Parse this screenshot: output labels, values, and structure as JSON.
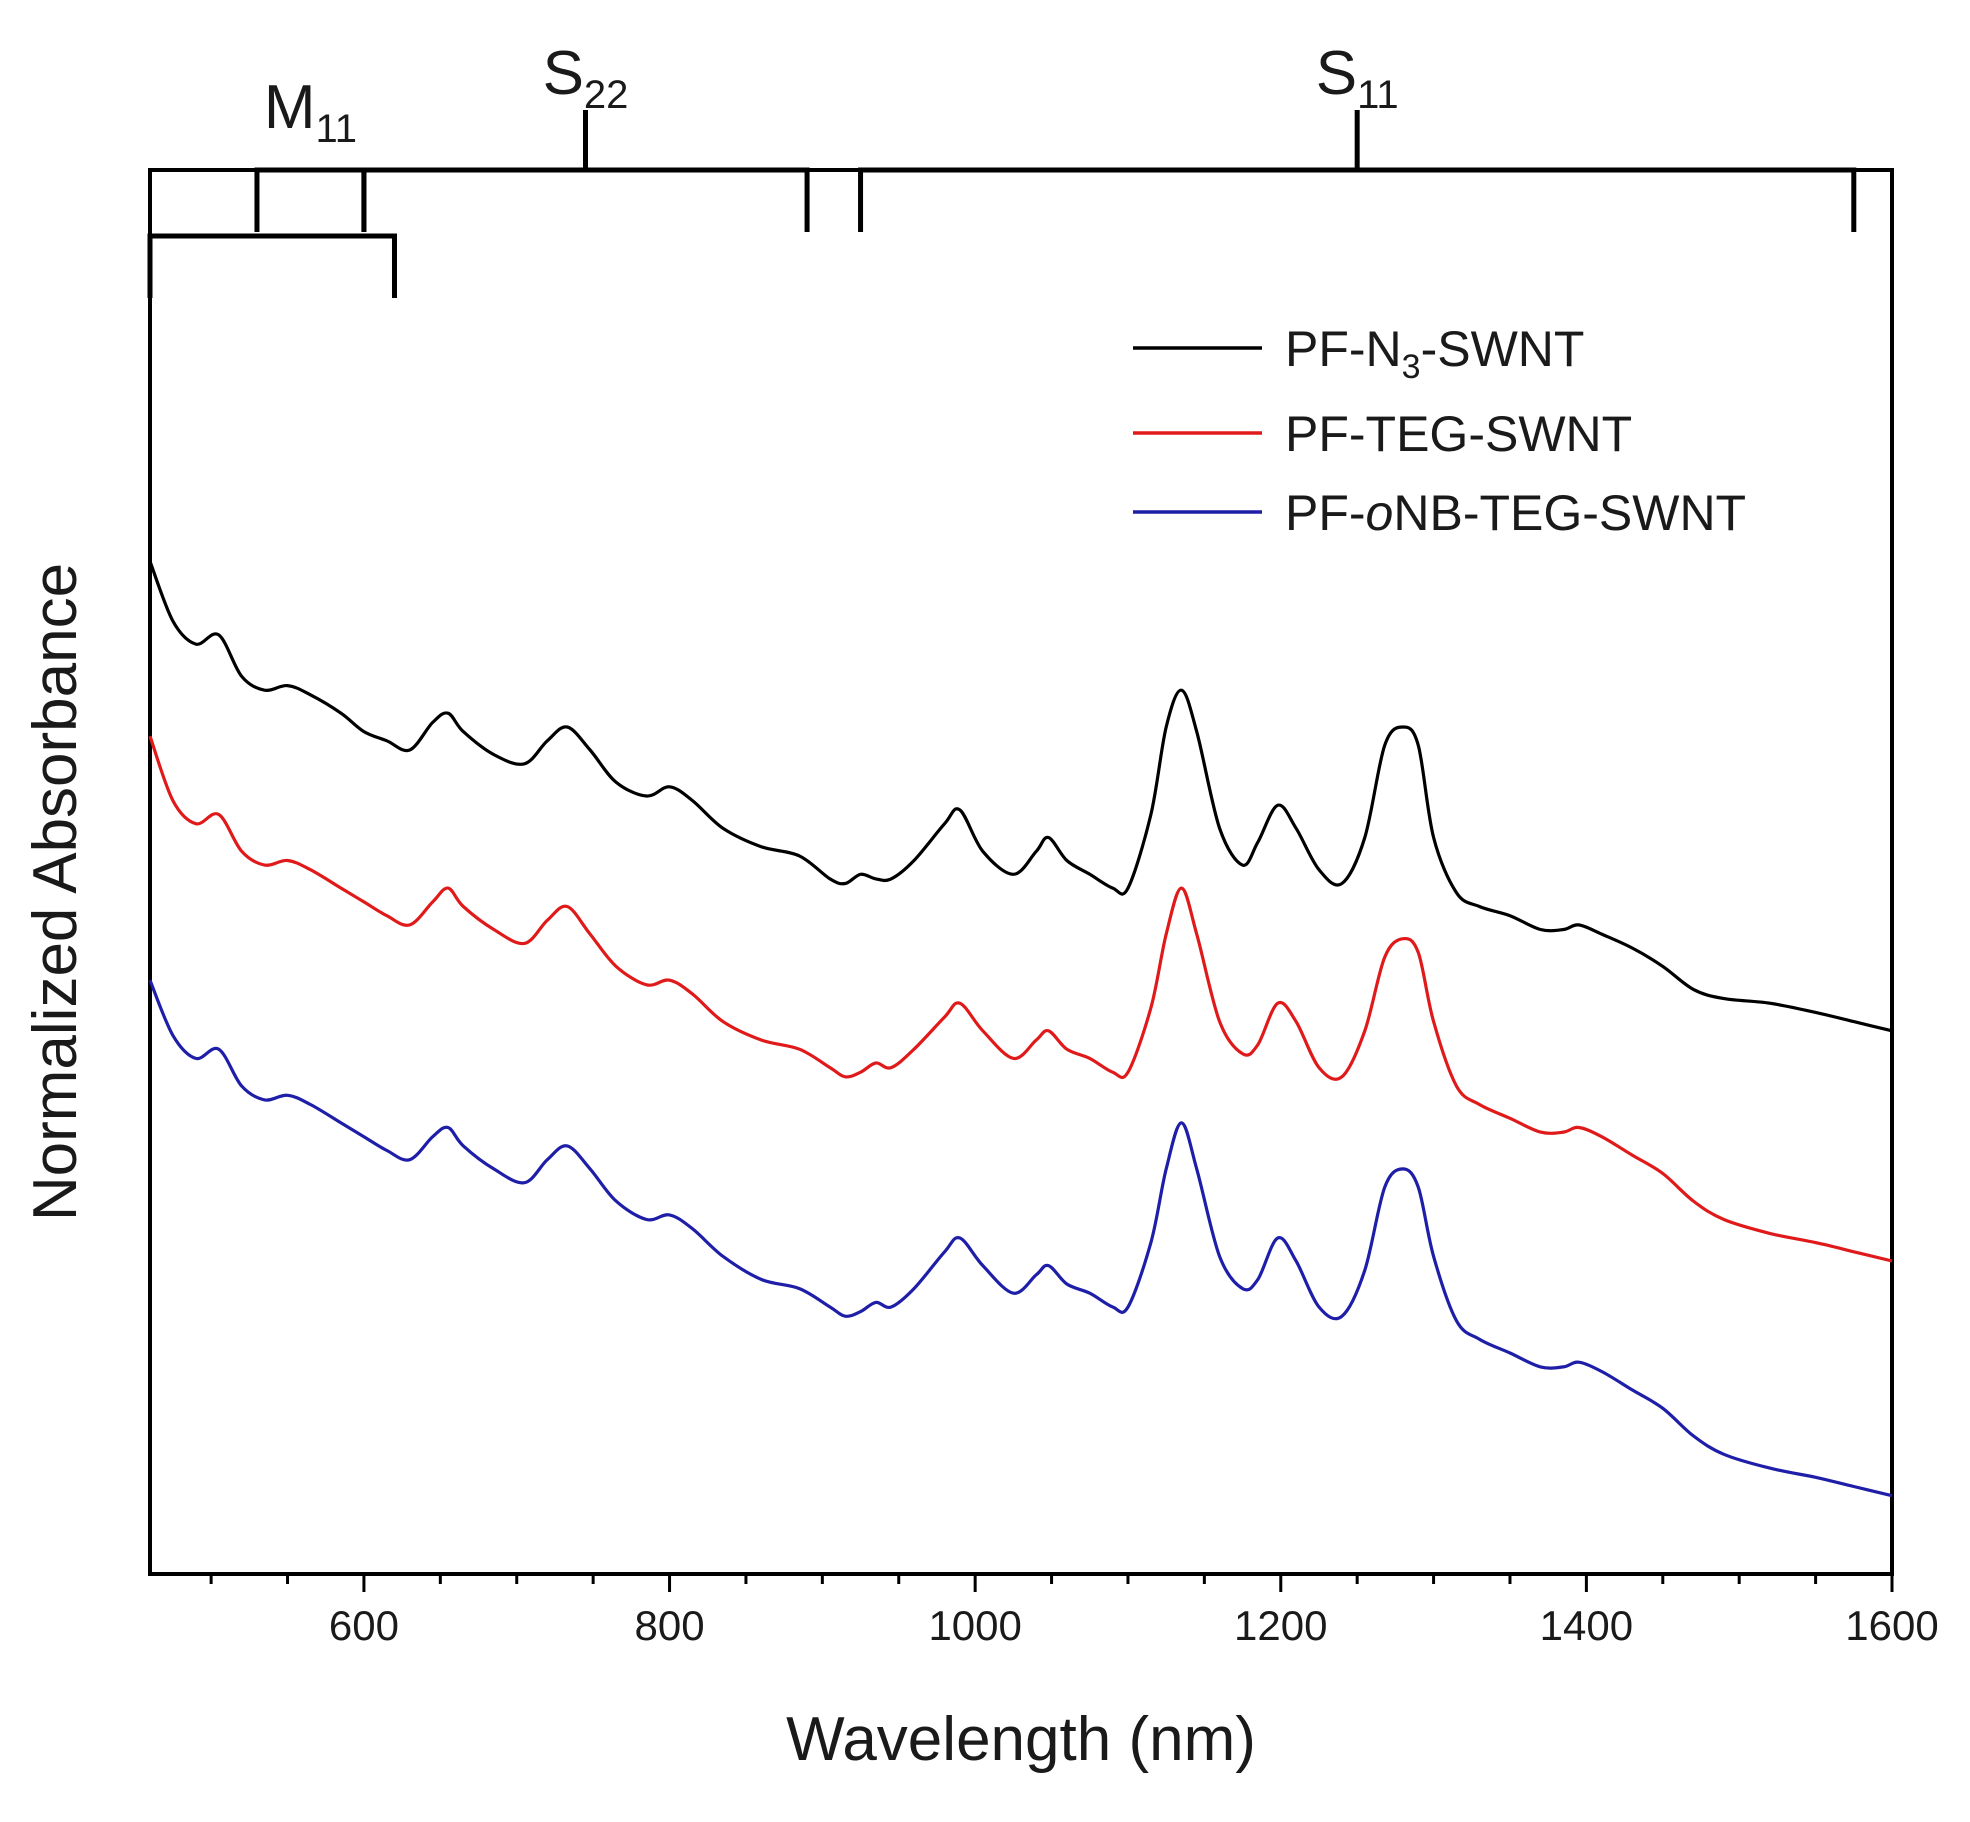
{
  "chart_data": {
    "type": "line",
    "xlabel": "Wavelength (nm)",
    "ylabel": "Normalized Absorbance",
    "xlim": [
      460,
      1600
    ],
    "ylim": [
      -1.2,
      1.85
    ],
    "x_ticks": [
      600,
      800,
      1000,
      1200,
      1400,
      1600
    ],
    "y_ticks": [],
    "grid": false,
    "legend_position": "top-right",
    "bands": [
      {
        "name": "M",
        "sub": "11",
        "brackets": [
          {
            "start": 530,
            "end": 600,
            "level": "upper"
          },
          {
            "start": 460,
            "end": 620,
            "level": "lower"
          }
        ]
      },
      {
        "name": "S",
        "sub": "22",
        "brackets": [
          {
            "start": 600,
            "end": 890,
            "level": "upper"
          }
        ]
      },
      {
        "name": "S",
        "sub": "11",
        "brackets": [
          {
            "start": 925,
            "end": 1575,
            "level": "upper"
          }
        ]
      }
    ],
    "series": [
      {
        "name_parts": [
          "PF-N",
          "3",
          "-SWNT"
        ],
        "color": "#000000",
        "x": [
          460,
          475,
          490,
          505,
          520,
          535,
          550,
          565,
          585,
          600,
          615,
          630,
          645,
          655,
          665,
          685,
          705,
          720,
          733,
          748,
          765,
          785,
          800,
          815,
          835,
          860,
          885,
          905,
          915,
          925,
          935,
          945,
          960,
          980,
          990,
          1005,
          1025,
          1040,
          1048,
          1060,
          1075,
          1090,
          1100,
          1115,
          1125,
          1135,
          1145,
          1160,
          1175,
          1185,
          1198,
          1210,
          1225,
          1240,
          1255,
          1268,
          1280,
          1290,
          1300,
          1315,
          1330,
          1350,
          1370,
          1385,
          1395,
          1410,
          1430,
          1450,
          1470,
          1490,
          1520,
          1550,
          1575,
          1600
        ],
        "y": [
          1.0,
          0.87,
          0.82,
          0.84,
          0.75,
          0.72,
          0.73,
          0.71,
          0.67,
          0.63,
          0.61,
          0.59,
          0.65,
          0.67,
          0.63,
          0.58,
          0.56,
          0.61,
          0.64,
          0.59,
          0.52,
          0.49,
          0.51,
          0.48,
          0.42,
          0.38,
          0.36,
          0.31,
          0.3,
          0.32,
          0.31,
          0.31,
          0.35,
          0.43,
          0.46,
          0.37,
          0.32,
          0.37,
          0.4,
          0.35,
          0.32,
          0.29,
          0.29,
          0.45,
          0.64,
          0.72,
          0.63,
          0.42,
          0.34,
          0.39,
          0.47,
          0.42,
          0.33,
          0.3,
          0.4,
          0.6,
          0.64,
          0.6,
          0.4,
          0.28,
          0.25,
          0.23,
          0.2,
          0.2,
          0.21,
          0.19,
          0.16,
          0.12,
          0.07,
          0.05,
          0.04,
          0.02,
          0.0,
          -0.02
        ]
      },
      {
        "name_parts": [
          "PF-TEG-SWNT"
        ],
        "color": "#e01a1a",
        "x": [
          460,
          475,
          490,
          505,
          520,
          535,
          550,
          565,
          585,
          600,
          615,
          630,
          645,
          655,
          665,
          685,
          705,
          720,
          733,
          748,
          765,
          785,
          800,
          815,
          835,
          860,
          885,
          905,
          915,
          925,
          935,
          945,
          960,
          980,
          990,
          1005,
          1025,
          1040,
          1048,
          1060,
          1075,
          1090,
          1100,
          1115,
          1125,
          1135,
          1145,
          1160,
          1175,
          1185,
          1198,
          1210,
          1225,
          1240,
          1255,
          1268,
          1280,
          1290,
          1300,
          1315,
          1330,
          1350,
          1370,
          1385,
          1395,
          1410,
          1430,
          1450,
          1470,
          1490,
          1520,
          1550,
          1575,
          1600
        ],
        "y": [
          0.62,
          0.48,
          0.43,
          0.45,
          0.37,
          0.34,
          0.35,
          0.33,
          0.29,
          0.26,
          0.23,
          0.21,
          0.26,
          0.29,
          0.25,
          0.2,
          0.17,
          0.22,
          0.25,
          0.19,
          0.12,
          0.08,
          0.09,
          0.06,
          0.0,
          -0.04,
          -0.06,
          -0.1,
          -0.12,
          -0.11,
          -0.09,
          -0.1,
          -0.06,
          0.01,
          0.04,
          -0.02,
          -0.08,
          -0.04,
          -0.02,
          -0.06,
          -0.08,
          -0.11,
          -0.11,
          0.03,
          0.19,
          0.29,
          0.19,
          0.0,
          -0.07,
          -0.05,
          0.04,
          0.0,
          -0.1,
          -0.12,
          -0.02,
          0.14,
          0.18,
          0.15,
          0.0,
          -0.14,
          -0.18,
          -0.21,
          -0.24,
          -0.24,
          -0.23,
          -0.25,
          -0.29,
          -0.33,
          -0.39,
          -0.43,
          -0.46,
          -0.48,
          -0.5,
          -0.52
        ]
      },
      {
        "name_parts": [
          "PF-",
          "o",
          "NB-TEG-SWNT"
        ],
        "color": "#1e1ea8",
        "x": [
          460,
          475,
          490,
          505,
          520,
          535,
          550,
          565,
          585,
          600,
          615,
          630,
          645,
          655,
          665,
          685,
          705,
          720,
          733,
          748,
          765,
          785,
          800,
          815,
          835,
          860,
          885,
          905,
          915,
          925,
          935,
          945,
          960,
          980,
          990,
          1005,
          1025,
          1040,
          1048,
          1060,
          1075,
          1090,
          1100,
          1115,
          1125,
          1135,
          1145,
          1160,
          1175,
          1185,
          1198,
          1210,
          1225,
          1240,
          1255,
          1268,
          1280,
          1290,
          1300,
          1315,
          1330,
          1350,
          1370,
          1385,
          1395,
          1410,
          1430,
          1450,
          1470,
          1490,
          1520,
          1550,
          1575,
          1600
        ],
        "y": [
          0.09,
          -0.03,
          -0.08,
          -0.06,
          -0.14,
          -0.17,
          -0.16,
          -0.18,
          -0.22,
          -0.25,
          -0.28,
          -0.3,
          -0.25,
          -0.23,
          -0.27,
          -0.32,
          -0.35,
          -0.3,
          -0.27,
          -0.32,
          -0.39,
          -0.43,
          -0.42,
          -0.45,
          -0.51,
          -0.56,
          -0.58,
          -0.62,
          -0.64,
          -0.63,
          -0.61,
          -0.62,
          -0.58,
          -0.5,
          -0.47,
          -0.53,
          -0.59,
          -0.55,
          -0.53,
          -0.57,
          -0.59,
          -0.62,
          -0.62,
          -0.48,
          -0.32,
          -0.22,
          -0.32,
          -0.51,
          -0.58,
          -0.56,
          -0.47,
          -0.52,
          -0.62,
          -0.64,
          -0.54,
          -0.36,
          -0.32,
          -0.36,
          -0.51,
          -0.65,
          -0.69,
          -0.72,
          -0.75,
          -0.75,
          -0.74,
          -0.76,
          -0.8,
          -0.84,
          -0.9,
          -0.94,
          -0.97,
          -0.99,
          -1.01,
          -1.03
        ]
      }
    ]
  }
}
